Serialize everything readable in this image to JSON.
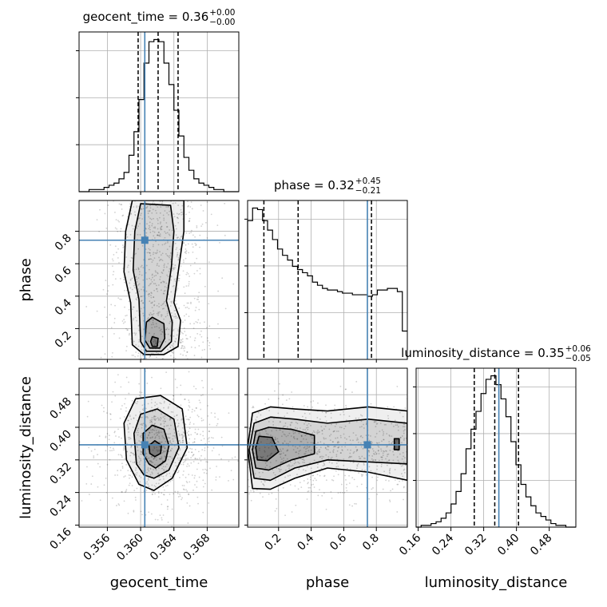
{
  "chart_data": {
    "type": "corner",
    "colors": {
      "truth": "#4682b4",
      "hist": "#000000",
      "grid": "#b0b0b0",
      "density": "#000000"
    },
    "parameters": [
      {
        "name": "geocent_time",
        "label": "geocent_time",
        "title": {
          "text": "geocent_time = 0.36",
          "sup": "+0.00",
          "sub": "−0.00"
        },
        "range": [
          0.3526,
          0.3718
        ],
        "ticks": [
          0.356,
          0.36,
          0.364,
          0.368
        ],
        "tick_labels": [
          "0.356",
          "0.360",
          "0.364",
          "0.368"
        ],
        "quantiles": [
          0.3597,
          0.3621,
          0.3645
        ],
        "truth": 0.3605
      },
      {
        "name": "phase",
        "label": "phase",
        "title": {
          "text": "phase = 0.32",
          "sup": "+0.45",
          "sub": "−0.21"
        },
        "range": [
          0.01,
          0.99
        ],
        "ticks": [
          0.2,
          0.4,
          0.6,
          0.8
        ],
        "tick_labels": [
          "0.2",
          "0.4",
          "0.6",
          "0.8"
        ],
        "quantiles": [
          0.11,
          0.32,
          0.77
        ],
        "truth": 0.745
      },
      {
        "name": "luminosity_distance",
        "label": "luminosity_distance",
        "title": {
          "text": "luminosity_distance = 0.35",
          "sup": "+0.06",
          "sub": "−0.05"
        },
        "range": [
          0.155,
          0.545
        ],
        "ticks": [
          0.16,
          0.24,
          0.32,
          0.4,
          0.48
        ],
        "tick_labels": [
          "0.16",
          "0.24",
          "0.32",
          "0.40",
          "0.48"
        ],
        "quantiles": [
          0.297,
          0.347,
          0.405
        ],
        "truth": 0.357
      }
    ],
    "histograms": {
      "geocent_time": {
        "edges": [
          0.3526,
          0.3718
        ],
        "counts": [
          0,
          0,
          1,
          1,
          1,
          2,
          3,
          4,
          6,
          9,
          17,
          28,
          43,
          60,
          70,
          71,
          70,
          60,
          50,
          38,
          26,
          16,
          10,
          6,
          4,
          3,
          2,
          1,
          1,
          0,
          0,
          0
        ]
      },
      "phase": {
        "edges": [
          0.01,
          0.99
        ],
        "counts": [
          88,
          96,
          95,
          88,
          82,
          76,
          70,
          66,
          63,
          59,
          57,
          55,
          53,
          49,
          47,
          45,
          44,
          44,
          43,
          42,
          42,
          41,
          41,
          41,
          40,
          41,
          44,
          44,
          45,
          45,
          43,
          18
        ]
      },
      "luminosity_distance": {
        "edges": [
          0.155,
          0.545
        ],
        "counts": [
          0,
          1,
          1,
          2,
          3,
          5,
          8,
          13,
          20,
          30,
          44,
          55,
          65,
          75,
          83,
          85,
          80,
          72,
          62,
          48,
          35,
          24,
          17,
          12,
          8,
          6,
          4,
          2,
          1,
          1,
          0,
          0
        ]
      }
    },
    "contours": {
      "phase_vs_geocent_time": {
        "x": "geocent_time",
        "y": "phase",
        "levels": [
          [
            [
              0.3604,
              0.04
            ],
            [
              0.3628,
              0.04
            ],
            [
              0.3645,
              0.09
            ],
            [
              0.3648,
              0.25
            ],
            [
              0.364,
              0.36
            ],
            [
              0.3646,
              0.58
            ],
            [
              0.3652,
              0.8
            ],
            [
              0.3652,
              0.99
            ],
            [
              0.359,
              0.99
            ],
            [
              0.3582,
              0.8
            ],
            [
              0.358,
              0.55
            ],
            [
              0.3588,
              0.36
            ],
            [
              0.359,
              0.1
            ]
          ],
          [
            [
              0.3607,
              0.06
            ],
            [
              0.3625,
              0.06
            ],
            [
              0.3637,
              0.12
            ],
            [
              0.3638,
              0.24
            ],
            [
              0.3631,
              0.37
            ],
            [
              0.3637,
              0.58
            ],
            [
              0.364,
              0.8
            ],
            [
              0.3636,
              0.96
            ],
            [
              0.36,
              0.97
            ],
            [
              0.3593,
              0.8
            ],
            [
              0.3591,
              0.56
            ],
            [
              0.3598,
              0.38
            ],
            [
              0.36,
              0.12
            ]
          ],
          [
            [
              0.3611,
              0.08
            ],
            [
              0.3623,
              0.08
            ],
            [
              0.3629,
              0.14
            ],
            [
              0.3628,
              0.23
            ],
            [
              0.3614,
              0.27
            ],
            [
              0.3607,
              0.24
            ],
            [
              0.3605,
              0.13
            ]
          ],
          [
            [
              0.3614,
              0.09
            ],
            [
              0.362,
              0.09
            ],
            [
              0.3621,
              0.14
            ],
            [
              0.3614,
              0.15
            ],
            [
              0.3612,
              0.12
            ]
          ]
        ]
      },
      "luminosity_distance_vs_geocent_time": {
        "x": "geocent_time",
        "y": "luminosity_distance",
        "levels": [
          [
            [
              0.3616,
              0.245
            ],
            [
              0.3638,
              0.275
            ],
            [
              0.3656,
              0.35
            ],
            [
              0.365,
              0.445
            ],
            [
              0.3624,
              0.478
            ],
            [
              0.3594,
              0.47
            ],
            [
              0.358,
              0.41
            ],
            [
              0.3583,
              0.32
            ],
            [
              0.3598,
              0.26
            ]
          ],
          [
            [
              0.3616,
              0.275
            ],
            [
              0.3634,
              0.295
            ],
            [
              0.3646,
              0.35
            ],
            [
              0.364,
              0.42
            ],
            [
              0.362,
              0.445
            ],
            [
              0.36,
              0.432
            ],
            [
              0.3592,
              0.385
            ],
            [
              0.3595,
              0.31
            ],
            [
              0.3604,
              0.283
            ]
          ],
          [
            [
              0.3618,
              0.3
            ],
            [
              0.363,
              0.318
            ],
            [
              0.3634,
              0.355
            ],
            [
              0.3628,
              0.395
            ],
            [
              0.3614,
              0.405
            ],
            [
              0.3603,
              0.385
            ],
            [
              0.3603,
              0.335
            ],
            [
              0.361,
              0.31
            ]
          ],
          [
            [
              0.3617,
              0.328
            ],
            [
              0.3624,
              0.336
            ],
            [
              0.3625,
              0.356
            ],
            [
              0.3617,
              0.367
            ],
            [
              0.361,
              0.355
            ],
            [
              0.3611,
              0.336
            ]
          ]
        ]
      },
      "luminosity_distance_vs_phase": {
        "x": "phase",
        "y": "luminosity_distance",
        "levels": [
          [
            [
              0.04,
              0.25
            ],
            [
              0.15,
              0.248
            ],
            [
              0.3,
              0.275
            ],
            [
              0.5,
              0.3
            ],
            [
              0.75,
              0.29
            ],
            [
              0.99,
              0.27
            ],
            [
              0.99,
              0.44
            ],
            [
              0.75,
              0.45
            ],
            [
              0.5,
              0.44
            ],
            [
              0.3,
              0.445
            ],
            [
              0.15,
              0.45
            ],
            [
              0.04,
              0.435
            ],
            [
              0.01,
              0.35
            ]
          ],
          [
            [
              0.05,
              0.275
            ],
            [
              0.15,
              0.27
            ],
            [
              0.3,
              0.3
            ],
            [
              0.5,
              0.32
            ],
            [
              0.75,
              0.315
            ],
            [
              0.99,
              0.31
            ],
            [
              0.99,
              0.41
            ],
            [
              0.75,
              0.42
            ],
            [
              0.5,
              0.41
            ],
            [
              0.3,
              0.42
            ],
            [
              0.15,
              0.425
            ],
            [
              0.05,
              0.41
            ],
            [
              0.02,
              0.345
            ]
          ],
          [
            [
              0.06,
              0.3
            ],
            [
              0.14,
              0.295
            ],
            [
              0.28,
              0.32
            ],
            [
              0.42,
              0.335
            ],
            [
              0.42,
              0.38
            ],
            [
              0.28,
              0.395
            ],
            [
              0.14,
              0.4
            ],
            [
              0.06,
              0.39
            ],
            [
              0.04,
              0.345
            ]
          ],
          [
            [
              0.07,
              0.32
            ],
            [
              0.13,
              0.318
            ],
            [
              0.2,
              0.34
            ],
            [
              0.16,
              0.375
            ],
            [
              0.08,
              0.378
            ],
            [
              0.06,
              0.35
            ]
          ],
          [
            [
              0.91,
              0.345
            ],
            [
              0.94,
              0.345
            ],
            [
              0.94,
              0.372
            ],
            [
              0.91,
              0.372
            ]
          ]
        ]
      }
    }
  }
}
